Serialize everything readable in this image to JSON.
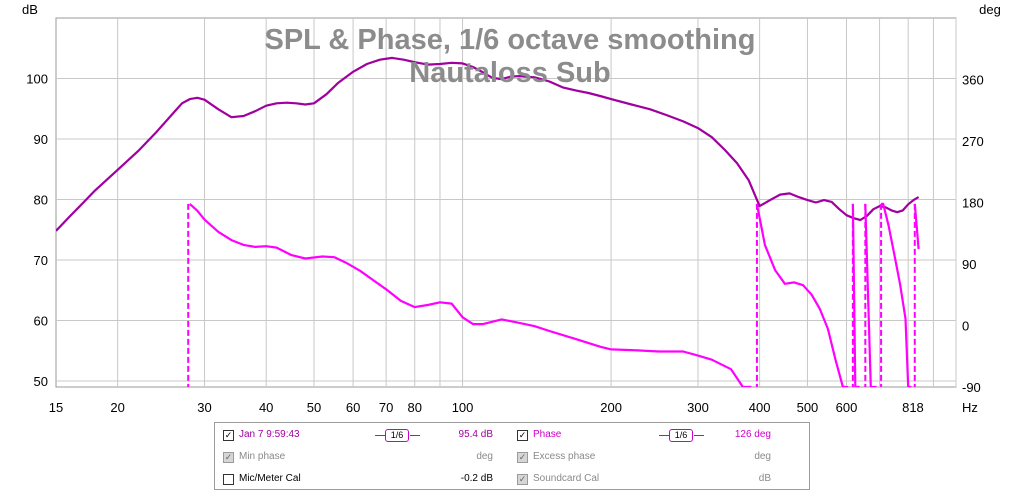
{
  "chart_data": {
    "type": "line",
    "title": "SPL & Phase, 1/6 octave smoothing",
    "subtitle": "Nautaloss Sub",
    "left_unit": "dB",
    "right_unit": "deg",
    "x_unit": "Hz",
    "x_scale": "log",
    "xlim": [
      15,
      1000
    ],
    "ylim_left": [
      49,
      110
    ],
    "ylim_right": [
      -90,
      450
    ],
    "x_ticks": [
      15,
      20,
      30,
      40,
      50,
      60,
      70,
      80,
      100,
      200,
      300,
      400,
      500,
      600,
      818
    ],
    "y_ticks_left": [
      50,
      60,
      70,
      80,
      90,
      100
    ],
    "y_ticks_right": [
      -90,
      0,
      90,
      180,
      270,
      360
    ],
    "grid": true,
    "colors": {
      "spl": "#a000a0",
      "phase": "#ff00ff",
      "title": "#8c8c8c"
    },
    "series": [
      {
        "name": "Jan 7 9:59:43",
        "axis": "left",
        "x": [
          15,
          16,
          17,
          18,
          20,
          22,
          24,
          26,
          27,
          28,
          29,
          30,
          32,
          34,
          36,
          38,
          40,
          42,
          44,
          46,
          48,
          50,
          53,
          56,
          60,
          64,
          68,
          72,
          76,
          80,
          85,
          90,
          95,
          100,
          105,
          110,
          115,
          120,
          125,
          130,
          140,
          150,
          160,
          170,
          180,
          190,
          200,
          220,
          240,
          260,
          280,
          300,
          320,
          340,
          360,
          380,
          400,
          420,
          440,
          460,
          480,
          500,
          520,
          540,
          560,
          580,
          600,
          620,
          640,
          660,
          680,
          700,
          720,
          740,
          760,
          780,
          800,
          820,
          840
        ],
        "values": [
          74.8,
          77.2,
          79.4,
          81.5,
          84.9,
          88.0,
          91.2,
          94.4,
          95.9,
          96.6,
          96.8,
          96.5,
          94.9,
          93.6,
          93.8,
          94.6,
          95.5,
          95.9,
          96.0,
          95.9,
          95.7,
          95.9,
          97.4,
          99.3,
          101.1,
          102.4,
          103.1,
          103.4,
          103.1,
          102.7,
          102.3,
          102.4,
          102.6,
          102.5,
          101.9,
          101.0,
          100.1,
          99.9,
          100.3,
          100.4,
          100.2,
          99.5,
          98.5,
          98.0,
          97.6,
          97.1,
          96.6,
          95.7,
          94.9,
          93.9,
          92.9,
          91.8,
          90.3,
          88.2,
          86.0,
          83.2,
          78.9,
          79.9,
          80.8,
          81.0,
          80.4,
          79.9,
          79.5,
          79.9,
          79.6,
          78.4,
          77.4,
          76.9,
          76.6,
          77.3,
          78.4,
          78.9,
          78.7,
          78.2,
          77.9,
          78.2,
          79.2,
          79.9,
          80.4
        ]
      },
      {
        "name": "Phase",
        "axis": "right",
        "x": [
          28,
          29,
          30,
          32,
          34,
          36,
          38,
          40,
          42,
          45,
          48,
          52,
          55,
          58,
          62,
          66,
          70,
          75,
          80,
          85,
          90,
          95,
          100,
          105,
          110,
          120,
          130,
          140,
          150,
          170,
          190,
          200,
          220,
          250,
          280,
          300,
          320,
          350,
          370,
          385,
          395,
          410,
          430,
          450,
          470,
          490,
          510,
          530,
          550,
          570,
          590,
          605,
          618,
          625,
          638,
          655,
          672,
          690,
          705,
          712,
          730,
          750,
          770,
          790,
          800,
          812,
          825,
          840
        ],
        "values": [
          178,
          168,
          155,
          137,
          125,
          118,
          115,
          116,
          114,
          103,
          98,
          101,
          100,
          92,
          80,
          66,
          53,
          36,
          27,
          30,
          34,
          32,
          12,
          2,
          2,
          9,
          4,
          -1,
          -8,
          -20,
          -31,
          -35,
          -36,
          -38,
          -38,
          -44,
          -50,
          -64,
          -90,
          -90,
          178,
          118,
          81,
          61,
          63,
          59,
          45,
          24,
          -5,
          -50,
          -90,
          -90,
          178,
          -90,
          -90,
          178,
          -90,
          -90,
          178,
          178,
          146,
          104,
          61,
          10,
          -90,
          -90,
          178,
          112
        ]
      }
    ],
    "phase_wraps": [
      [
        27.8,
        178,
        -90
      ],
      [
        395,
        178,
        -90
      ],
      [
        618,
        178,
        -90
      ],
      [
        655,
        178,
        -90
      ],
      [
        705,
        178,
        -90
      ],
      [
        825,
        178,
        -90
      ]
    ]
  },
  "legend": {
    "spl_name": "Jan 7 9:59:43",
    "spl_smoothing": "1/6",
    "spl_value": "95.4 dB",
    "phase_name": "Phase",
    "phase_smoothing": "1/6",
    "phase_value": "126 deg",
    "min_phase_name": "Min phase",
    "min_phase_value": "deg",
    "excess_phase_name": "Excess phase",
    "excess_phase_value": "deg",
    "mic_cal_name": "Mic/Meter Cal",
    "mic_cal_value": "-0.2 dB",
    "soundcard_cal_name": "Soundcard Cal",
    "soundcard_cal_value": "dB",
    "check_mark": "✓"
  }
}
